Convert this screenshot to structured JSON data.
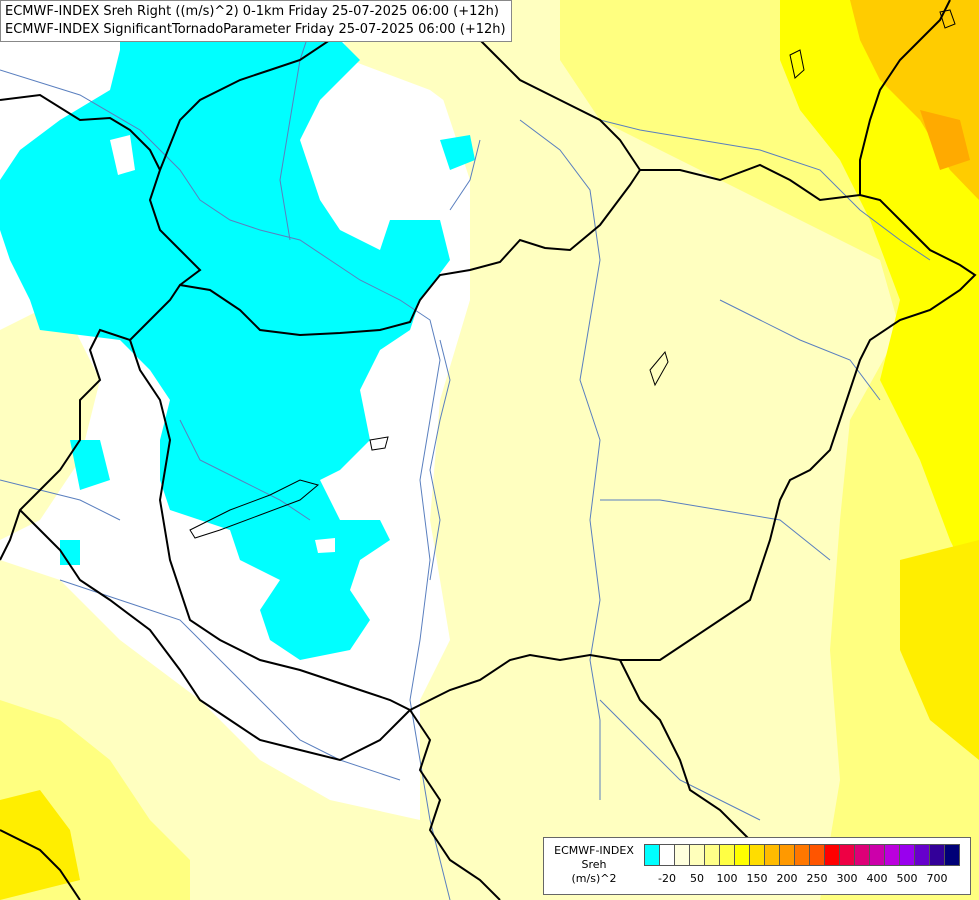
{
  "title": {
    "line1": "ECMWF-INDEX Sreh Right ((m/s)^2) 0-1km Friday 25-07-2025 06:00 (+12h)",
    "line2": "ECMWF-INDEX SignificantTornadoParameter Friday 25-07-2025 06:00 (+12h)"
  },
  "legend": {
    "label_lines": [
      "ECMWF-INDEX",
      "Sreh",
      "(m/s)^2"
    ],
    "swatch_colors": [
      "#00ffff",
      "#ffffff",
      "#ffffdd",
      "#ffffbb",
      "#ffff88",
      "#ffff44",
      "#ffff00",
      "#ffdd00",
      "#ffbb00",
      "#ff9900",
      "#ff7700",
      "#ff5500",
      "#ff0000",
      "#ee0044",
      "#dd0077",
      "#cc00aa",
      "#bb00dd",
      "#9900ee",
      "#6600cc",
      "#330099",
      "#000077"
    ],
    "tick_labels": [
      {
        "text": "-20",
        "index": 1
      },
      {
        "text": "50",
        "index": 3
      },
      {
        "text": "100",
        "index": 5
      },
      {
        "text": "150",
        "index": 7
      },
      {
        "text": "200",
        "index": 9
      },
      {
        "text": "250",
        "index": 11
      },
      {
        "text": "300",
        "index": 13
      },
      {
        "text": "400",
        "index": 15
      },
      {
        "text": "500",
        "index": 17
      },
      {
        "text": "700",
        "index": 19
      }
    ]
  },
  "colors": {
    "negative_shading": "#00ffff",
    "light_yellow": "#ffffc0",
    "yellow": "#ffff80",
    "bright_yellow": "#ffff00",
    "orange": "#ffcc00",
    "border_line": "#000000",
    "river_line": "#5a7fbf"
  }
}
